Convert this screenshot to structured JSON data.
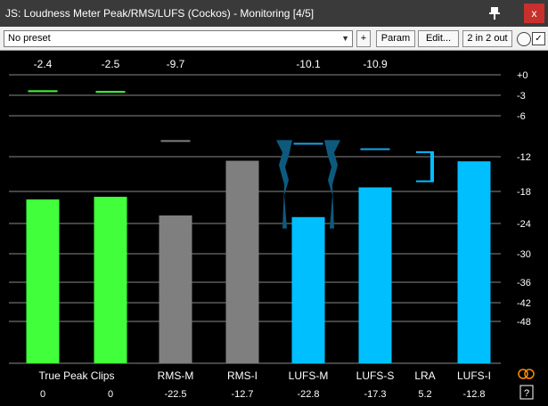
{
  "window": {
    "title": "JS: Loudness Meter Peak/RMS/LUFS (Cockos) - Monitoring [4/5]",
    "close_label": "x"
  },
  "toolbar": {
    "preset_value": "No preset",
    "plus_label": "+",
    "param_label": "Param",
    "edit_label": "Edit...",
    "io_label": "2 in 2 out",
    "bypass_checked": true
  },
  "meter": {
    "scale_labels": [
      "+0",
      "-3",
      "-6",
      "-12",
      "-18",
      "-24",
      "-30",
      "-36",
      "-42",
      "-48"
    ],
    "peak_readouts": [
      {
        "id": "tp-l",
        "value": "-2.4"
      },
      {
        "id": "tp-r",
        "value": "-2.5"
      },
      {
        "id": "rms-m",
        "value": "-9.7"
      },
      {
        "id": "lufs-m",
        "value": "-10.1"
      },
      {
        "id": "lufs-s",
        "value": "-10.9"
      }
    ],
    "channels": [
      {
        "id": "tp-l",
        "label": "",
        "value": "0",
        "level": -19.5,
        "peak": -2.4,
        "color": "#41ff3a",
        "peak_color": "#41ff3a"
      },
      {
        "id": "tp-r",
        "label": "",
        "value": "0",
        "level": -19.0,
        "peak": -2.5,
        "color": "#41ff3a",
        "peak_color": "#41ff3a"
      },
      {
        "id": "rms-m",
        "label": "RMS-M",
        "value": "-22.5",
        "level": -22.5,
        "peak": -9.7,
        "color": "#7f7f7f",
        "peak_color": "#7f7f7f"
      },
      {
        "id": "rms-i",
        "label": "RMS-I",
        "value": "-12.7",
        "level": -12.7,
        "color": "#7f7f7f"
      },
      {
        "id": "lufs-m",
        "label": "LUFS-M",
        "value": "-22.8",
        "level": -22.8,
        "peak": -10.1,
        "color": "#00bfff",
        "peak_color": "#1aa5e6"
      },
      {
        "id": "lufs-s",
        "label": "LUFS-S",
        "value": "-17.3",
        "level": -17.3,
        "peak": -10.9,
        "color": "#00bfff",
        "peak_color": "#1aa5e6"
      },
      {
        "id": "lra",
        "label": "LRA",
        "value": "5.2",
        "range_top": -11.2,
        "range_bottom": -16.4,
        "color": "#00bfff"
      },
      {
        "id": "lufs-i",
        "label": "LUFS-I",
        "value": "-12.8",
        "level": -12.8,
        "color": "#00bfff"
      }
    ],
    "true_peak_label": "True Peak Clips",
    "help_label": "?",
    "colors": {
      "green": "#41ff3a",
      "gray": "#7f7f7f",
      "cyan": "#00bfff",
      "dark_teal": "#0d5a7e",
      "orange": "#ff8c00"
    }
  }
}
